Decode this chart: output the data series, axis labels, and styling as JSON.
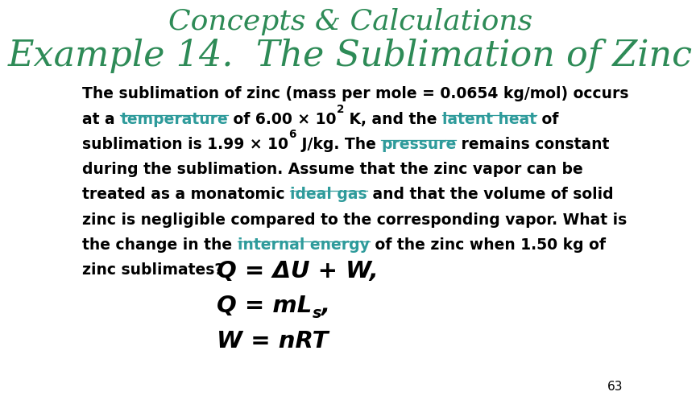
{
  "title_line1": "Concepts & Calculations",
  "title_line2": "Example 14.  The Sublimation of Zinc",
  "title_color": "#2E8B57",
  "link_color": "#2E9B9B",
  "body_color": "#000000",
  "bg_color": "#FFFFFF",
  "page_number": "63",
  "title1_fontsize": 26,
  "title2_fontsize": 32,
  "body_fontsize": 13.5,
  "eq_fontsize": 21
}
